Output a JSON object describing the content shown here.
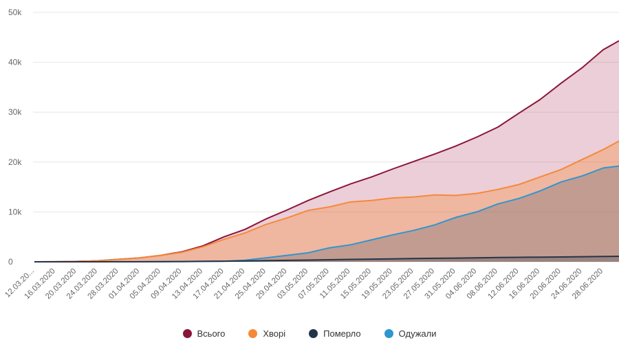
{
  "chart_data": {
    "type": "area",
    "title": "",
    "xlabel": "",
    "ylabel": "",
    "ylim": [
      0,
      50000
    ],
    "y_ticks": [
      "0",
      "10k",
      "20k",
      "30k",
      "40k",
      "50k"
    ],
    "y_tick_values": [
      0,
      10000,
      20000,
      30000,
      40000,
      50000
    ],
    "x_tick_labels": [
      "12.03.20...",
      "16.03.2020",
      "20.03.2020",
      "24.03.2020",
      "28.03.2020",
      "01.04.2020",
      "05.04.2020",
      "09.04.2020",
      "13.04.2020",
      "17.04.2020",
      "21.04.2020",
      "25.04.2020",
      "29.04.2020",
      "03.05.2020",
      "07.05.2020",
      "11.05.2020",
      "15.05.2020",
      "19.05.2020",
      "23.05.2020",
      "27.05.2020",
      "31.05.2020",
      "04.06.2020",
      "08.06.2020",
      "12.06.2020",
      "16.06.2020",
      "20.06.2020",
      "24.06.2020",
      "28.06.2020"
    ],
    "x_days": [
      0,
      4,
      8,
      12,
      16,
      20,
      24,
      28,
      32,
      36,
      40,
      44,
      48,
      52,
      56,
      60,
      64,
      68,
      72,
      76,
      80,
      84,
      88,
      92,
      96,
      100,
      104,
      108,
      111
    ],
    "x_range_days": [
      0,
      111
    ],
    "grid": true,
    "legend_position": "bottom",
    "series": [
      {
        "name": "Всього",
        "color": "#8b1538",
        "fill": "rgba(176,60,95,0.25)",
        "values": [
          0,
          10,
          80,
          200,
          500,
          800,
          1300,
          2000,
          3200,
          5000,
          6500,
          8600,
          10400,
          12300,
          14000,
          15600,
          17000,
          18600,
          20100,
          21600,
          23200,
          25000,
          27000,
          29800,
          32500,
          35800,
          38900,
          42500,
          44300
        ]
      },
      {
        "name": "Хворі",
        "color": "#f5893a",
        "fill": "rgba(245,137,58,0.35)",
        "values": [
          0,
          10,
          75,
          190,
          480,
          780,
          1270,
          1900,
          3000,
          4500,
          5800,
          7500,
          8800,
          10300,
          11000,
          12000,
          12300,
          12800,
          13000,
          13400,
          13300,
          13700,
          14500,
          15500,
          17000,
          18500,
          20500,
          22500,
          24200
        ]
      },
      {
        "name": "Померло",
        "color": "#243447",
        "fill": "rgba(36,52,71,0.25)",
        "values": [
          0,
          0,
          1,
          4,
          10,
          20,
          35,
          60,
          90,
          130,
          180,
          230,
          290,
          350,
          410,
          480,
          540,
          590,
          650,
          700,
          750,
          800,
          850,
          890,
          930,
          970,
          1020,
          1070,
          1100
        ]
      },
      {
        "name": "Одужали",
        "color": "#2f95d0",
        "fill": "rgba(60,80,100,0.25)",
        "values": [
          0,
          0,
          0,
          2,
          5,
          10,
          20,
          40,
          70,
          120,
          300,
          800,
          1300,
          1800,
          2800,
          3400,
          4400,
          5400,
          6300,
          7400,
          8900,
          10000,
          11600,
          12700,
          14200,
          16000,
          17200,
          18800,
          19200
        ]
      }
    ]
  }
}
